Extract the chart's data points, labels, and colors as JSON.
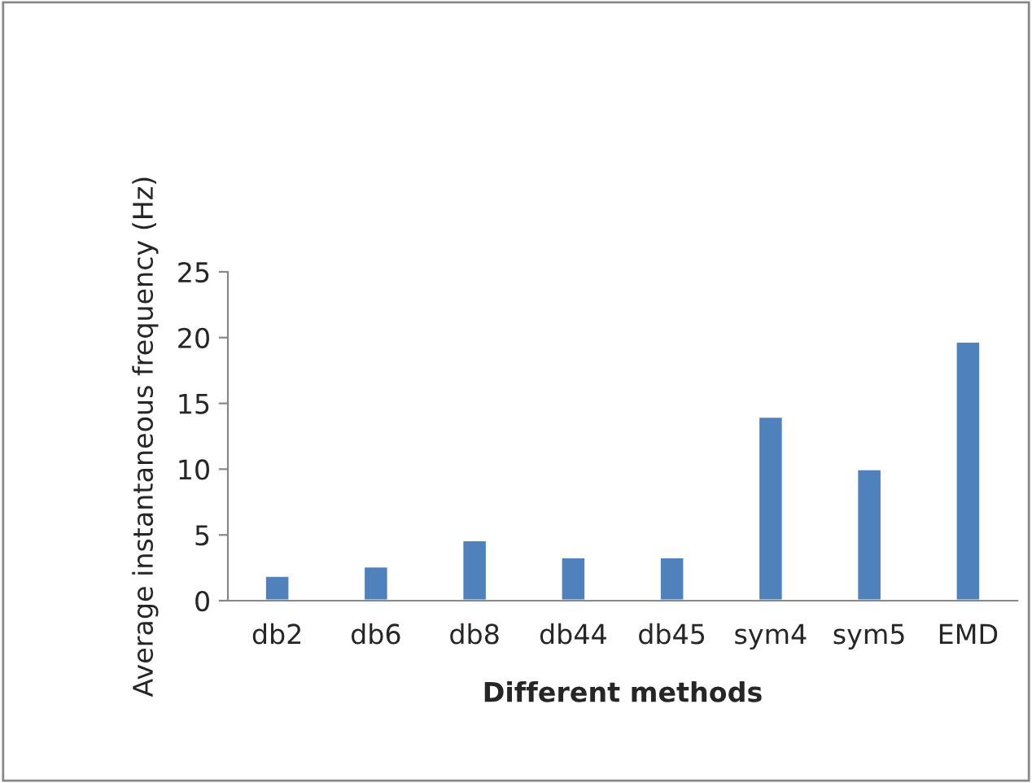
{
  "chart_data": {
    "type": "bar",
    "xlabel": "Different methods",
    "ylabel": "Average instantaneous frequency (Hz)",
    "categories": [
      "db2",
      "db6",
      "db8",
      "db44",
      "db45",
      "sym4",
      "sym5",
      "EMD"
    ],
    "values": [
      1.9,
      2.6,
      4.6,
      3.3,
      3.3,
      14,
      10,
      19.7
    ],
    "color": "#4f81bd",
    "ylim": [
      0,
      25
    ],
    "yticks": [
      0,
      5,
      10,
      15,
      20,
      25
    ],
    "grid": false
  }
}
